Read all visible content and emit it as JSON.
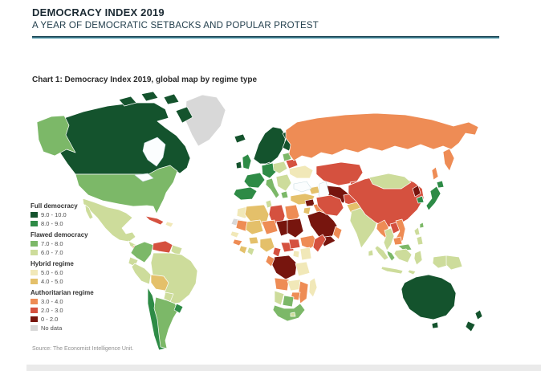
{
  "header": {
    "title": "DEMOCRACY INDEX 2019",
    "subtitle": "A YEAR OF DEMOCRATIC SETBACKS AND POPULAR PROTEST"
  },
  "chart": {
    "title": "Chart 1: Democracy Index 2019, global map by regime type",
    "source": "Source: The Economist Intelligence Unit."
  },
  "accent_colors": {
    "header_rule_dark": "#16404f",
    "header_rule_teal": "#579cae"
  },
  "legend": {
    "groups": [
      {
        "label": "Full democracy",
        "items": [
          {
            "range": "9.0 - 10.0",
            "color": "#14532d"
          },
          {
            "range": "8.0 - 9.0",
            "color": "#2e8b46"
          }
        ]
      },
      {
        "label": "Flawed democracy",
        "items": [
          {
            "range": "7.0 - 8.0",
            "color": "#7cb868"
          },
          {
            "range": "6.0 - 7.0",
            "color": "#cddc9b"
          }
        ]
      },
      {
        "label": "Hybrid regime",
        "items": [
          {
            "range": "5.0 - 6.0",
            "color": "#f1e8b8"
          },
          {
            "range": "4.0 - 5.0",
            "color": "#e4c06a"
          }
        ]
      },
      {
        "label": "Authoritarian regime",
        "items": [
          {
            "range": "3.0 - 4.0",
            "color": "#ee8c55"
          },
          {
            "range": "2.0 - 3.0",
            "color": "#d5513f"
          },
          {
            "range": "0 - 2.0",
            "color": "#77150e"
          },
          {
            "range": "No data",
            "color": "#d8d8d8"
          }
        ]
      }
    ]
  },
  "chart_data": {
    "type": "choropleth_map",
    "title": "Chart 1: Democracy Index 2019, global map by regime type",
    "source": "Source: The Economist Intelligence Unit.",
    "legend_position": "left",
    "scale_note": "Democracy Index score 0-10 grouped by regime type",
    "regions": [
      {
        "name": "Greenland",
        "range": "No data"
      },
      {
        "name": "Canada",
        "range": "9.0 - 10.0"
      },
      {
        "name": "United States",
        "range": "7.0 - 8.0"
      },
      {
        "name": "Mexico",
        "range": "6.0 - 7.0"
      },
      {
        "name": "Central America",
        "range": "6.0 - 7.0"
      },
      {
        "name": "Nicaragua",
        "range": "3.0 - 4.0"
      },
      {
        "name": "Cuba",
        "range": "2.0 - 3.0"
      },
      {
        "name": "Caribbean",
        "range": "5.0 - 6.0"
      },
      {
        "name": "Colombia",
        "range": "7.0 - 8.0"
      },
      {
        "name": "Venezuela",
        "range": "2.0 - 3.0"
      },
      {
        "name": "Guyana/Suriname",
        "range": "6.0 - 7.0"
      },
      {
        "name": "Ecuador",
        "range": "6.0 - 7.0"
      },
      {
        "name": "Peru",
        "range": "6.0 - 7.0"
      },
      {
        "name": "Brazil",
        "range": "6.0 - 7.0"
      },
      {
        "name": "Bolivia",
        "range": "4.0 - 5.0"
      },
      {
        "name": "Paraguay",
        "range": "6.0 - 7.0"
      },
      {
        "name": "Chile",
        "range": "8.0 - 9.0"
      },
      {
        "name": "Argentina",
        "range": "7.0 - 8.0"
      },
      {
        "name": "Uruguay",
        "range": "8.0 - 9.0"
      },
      {
        "name": "Iceland",
        "range": "9.0 - 10.0"
      },
      {
        "name": "Scandinavia",
        "range": "9.0 - 10.0"
      },
      {
        "name": "Finland",
        "range": "9.0 - 10.0"
      },
      {
        "name": "Denmark",
        "range": "9.0 - 10.0"
      },
      {
        "name": "United Kingdom",
        "range": "8.0 - 9.0"
      },
      {
        "name": "Ireland",
        "range": "9.0 - 10.0"
      },
      {
        "name": "Germany/Central Europe",
        "range": "8.0 - 9.0"
      },
      {
        "name": "France",
        "range": "8.0 - 9.0"
      },
      {
        "name": "Iberia",
        "range": "8.0 - 9.0"
      },
      {
        "name": "Italy",
        "range": "7.0 - 8.0"
      },
      {
        "name": "Baltic States",
        "range": "7.0 - 8.0"
      },
      {
        "name": "Poland/Czechia",
        "range": "6.0 - 7.0"
      },
      {
        "name": "Belarus",
        "range": "2.0 - 3.0"
      },
      {
        "name": "Ukraine",
        "range": "5.0 - 6.0"
      },
      {
        "name": "Balkans",
        "range": "6.0 - 7.0"
      },
      {
        "name": "Greece",
        "range": "7.0 - 8.0"
      },
      {
        "name": "Russia",
        "range": "3.0 - 4.0"
      },
      {
        "name": "Kazakhstan",
        "range": "2.0 - 3.0"
      },
      {
        "name": "Turkmenistan/Uzbekistan",
        "range": "0 - 2.0"
      },
      {
        "name": "Kyrgyzstan/Tajikistan",
        "range": "2.0 - 3.0"
      },
      {
        "name": "Caucasus",
        "range": "4.0 - 5.0"
      },
      {
        "name": "Turkey",
        "range": "4.0 - 5.0"
      },
      {
        "name": "Syria",
        "range": "0 - 2.0"
      },
      {
        "name": "Iraq",
        "range": "3.0 - 4.0"
      },
      {
        "name": "Jordan",
        "range": "4.0 - 5.0"
      },
      {
        "name": "Saudi Arabia",
        "range": "0 - 2.0"
      },
      {
        "name": "Yemen",
        "range": "0 - 2.0"
      },
      {
        "name": "Oman",
        "range": "3.0 - 4.0"
      },
      {
        "name": "Iran",
        "range": "2.0 - 3.0"
      },
      {
        "name": "Afghanistan",
        "range": "2.0 - 3.0"
      },
      {
        "name": "Pakistan",
        "range": "4.0 - 5.0"
      },
      {
        "name": "India",
        "range": "6.0 - 7.0"
      },
      {
        "name": "Sri Lanka",
        "range": "6.0 - 7.0"
      },
      {
        "name": "China",
        "range": "2.0 - 3.0"
      },
      {
        "name": "Mongolia",
        "range": "6.0 - 7.0"
      },
      {
        "name": "North Korea",
        "range": "0 - 2.0"
      },
      {
        "name": "South Korea",
        "range": "8.0 - 9.0"
      },
      {
        "name": "Japan",
        "range": "8.0 - 9.0"
      },
      {
        "name": "Taiwan",
        "range": "7.0 - 8.0"
      },
      {
        "name": "Myanmar",
        "range": "3.0 - 4.0"
      },
      {
        "name": "Thailand",
        "range": "6.0 - 7.0"
      },
      {
        "name": "Laos",
        "range": "2.0 - 3.0"
      },
      {
        "name": "Vietnam",
        "range": "3.0 - 4.0"
      },
      {
        "name": "Cambodia",
        "range": "3.0 - 4.0"
      },
      {
        "name": "Malaysia",
        "range": "7.0 - 8.0"
      },
      {
        "name": "Philippines",
        "range": "6.0 - 7.0"
      },
      {
        "name": "Indonesia",
        "range": "6.0 - 7.0"
      },
      {
        "name": "Papua New Guinea",
        "range": "6.0 - 7.0"
      },
      {
        "name": "Australia",
        "range": "9.0 - 10.0"
      },
      {
        "name": "New Zealand",
        "range": "9.0 - 10.0"
      },
      {
        "name": "Morocco",
        "range": "5.0 - 6.0"
      },
      {
        "name": "Western Sahara",
        "range": "No data"
      },
      {
        "name": "Algeria",
        "range": "4.0 - 5.0"
      },
      {
        "name": "Tunisia",
        "range": "6.0 - 7.0"
      },
      {
        "name": "Libya",
        "range": "2.0 - 3.0"
      },
      {
        "name": "Egypt",
        "range": "3.0 - 4.0"
      },
      {
        "name": "Mauritania",
        "range": "3.0 - 4.0"
      },
      {
        "name": "Mali",
        "range": "4.0 - 5.0"
      },
      {
        "name": "Niger",
        "range": "3.0 - 4.0"
      },
      {
        "name": "Chad",
        "range": "0 - 2.0"
      },
      {
        "name": "Sudan",
        "range": "0 - 2.0"
      },
      {
        "name": "Senegal",
        "range": "5.0 - 6.0"
      },
      {
        "name": "Guinea",
        "range": "3.0 - 4.0"
      },
      {
        "name": "Ivory Coast",
        "range": "4.0 - 5.0"
      },
      {
        "name": "Ghana",
        "range": "6.0 - 7.0"
      },
      {
        "name": "Burkina Faso",
        "range": "4.0 - 5.0"
      },
      {
        "name": "Nigeria",
        "range": "4.0 - 5.0"
      },
      {
        "name": "Cameroon",
        "range": "2.0 - 3.0"
      },
      {
        "name": "Central African Republic",
        "range": "2.0 - 3.0"
      },
      {
        "name": "South Sudan",
        "range": "2.0 - 3.0"
      },
      {
        "name": "Ethiopia",
        "range": "3.0 - 4.0"
      },
      {
        "name": "Somalia",
        "range": "2.0 - 3.0"
      },
      {
        "name": "Kenya",
        "range": "5.0 - 6.0"
      },
      {
        "name": "Uganda",
        "range": "5.0 - 6.0"
      },
      {
        "name": "DR Congo",
        "range": "0 - 2.0"
      },
      {
        "name": "Congo/Gabon",
        "range": "3.0 - 4.0"
      },
      {
        "name": "Tanzania",
        "range": "5.0 - 6.0"
      },
      {
        "name": "Angola",
        "range": "3.0 - 4.0"
      },
      {
        "name": "Zambia",
        "range": "5.0 - 6.0"
      },
      {
        "name": "Mozambique",
        "range": "3.0 - 4.0"
      },
      {
        "name": "Zimbabwe",
        "range": "3.0 - 4.0"
      },
      {
        "name": "Botswana",
        "range": "7.0 - 8.0"
      },
      {
        "name": "Namibia",
        "range": "6.0 - 7.0"
      },
      {
        "name": "South Africa",
        "range": "7.0 - 8.0"
      },
      {
        "name": "Lesotho",
        "range": "6.0 - 7.0"
      },
      {
        "name": "Madagascar",
        "range": "5.0 - 6.0"
      }
    ]
  }
}
